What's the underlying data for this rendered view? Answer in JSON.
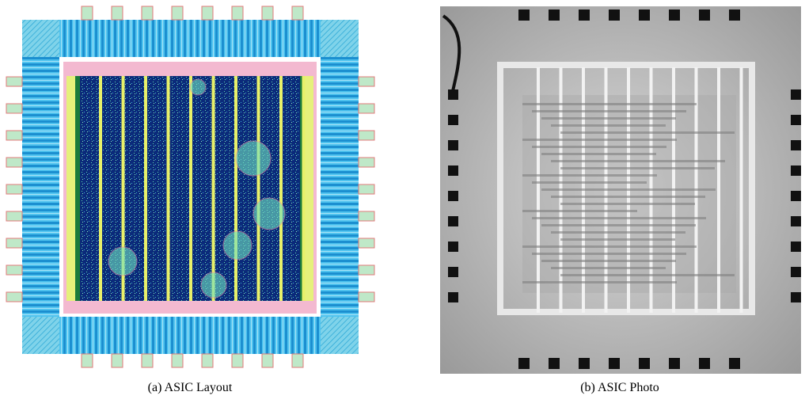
{
  "figure": {
    "panels": [
      {
        "caption": "(a) ASIC Layout"
      },
      {
        "caption": "(b) ASIC Photo"
      }
    ]
  }
}
